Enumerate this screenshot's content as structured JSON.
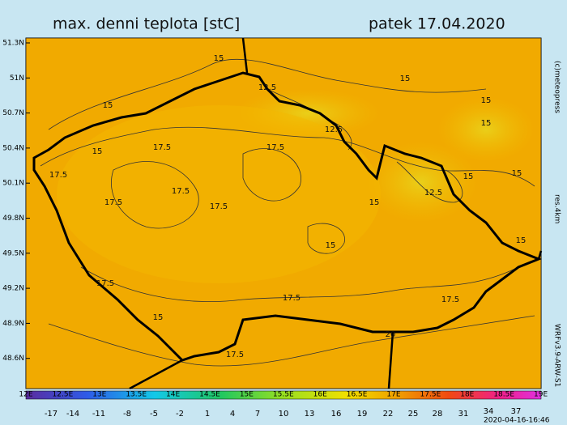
{
  "header": {
    "title": "max. denni teplota [stC]",
    "date": "patek 17.04.2020"
  },
  "lat_labels": [
    "51.3N",
    "51N",
    "50.7N",
    "50.4N",
    "50.1N",
    "49.8N",
    "49.5N",
    "49.2N",
    "48.9N",
    "48.6N"
  ],
  "lon_labels": [
    "12E",
    "12.5E",
    "13E",
    "13.5E",
    "14E",
    "14.5E",
    "15E",
    "15.5E",
    "16E",
    "16.5E",
    "17E",
    "17.5E",
    "18E",
    "18.5E",
    "19E"
  ],
  "colorbar_labels": [
    -17,
    -14,
    -11,
    -8,
    -5,
    -2,
    1,
    4,
    7,
    10,
    13,
    16,
    19,
    22,
    25,
    28,
    31,
    34,
    37
  ],
  "contour_labels": [
    "15",
    "15",
    "12.5",
    "15",
    "15",
    "15",
    "12.5",
    "15",
    "17.5",
    "17.5",
    "17.5",
    "17.5",
    "12.5",
    "15",
    "15",
    "17.5",
    "15",
    "17.5",
    "15",
    "15",
    "17.5",
    "17.5",
    "17.5",
    "15",
    "17.5",
    "20"
  ],
  "side": {
    "copyright": "(c)meteopress",
    "resolution": "res.4km",
    "model": "WRFv3.9-ARW-S1",
    "timestamp": "2020-04-16-16:46"
  }
}
